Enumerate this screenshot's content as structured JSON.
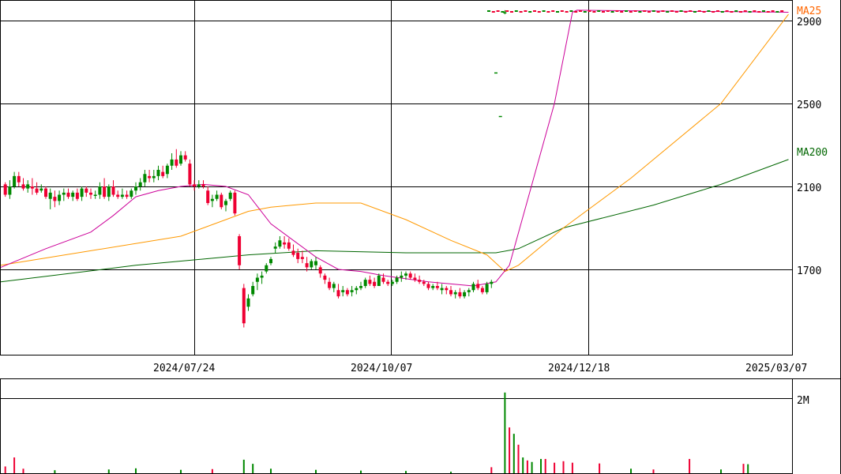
{
  "chart_data": [
    {
      "type": "candlestick",
      "y_ticks": [
        {
          "label": "2900",
          "value": 2900
        },
        {
          "label": "2500",
          "value": 2500
        },
        {
          "label": "2100",
          "value": 2100
        },
        {
          "label": "1700",
          "value": 1700
        }
      ],
      "x_ticks": [
        "2024/07/24",
        "2024/10/07",
        "2024/12/18",
        "2025/03/07"
      ],
      "series": [
        {
          "name": "MA25",
          "color": "#ff6600"
        },
        {
          "name": "MA200",
          "color": "#006600"
        }
      ],
      "colors": {
        "up": "#008800",
        "down": "#ee0033",
        "ma_short": "#cc0099",
        "ma_mid": "#ff9900",
        "ma_long": "#006600"
      },
      "candles": [
        [
          1,
          2110,
          2120,
          2050,
          2060
        ],
        [
          2,
          2060,
          2130,
          2040,
          2100
        ],
        [
          3,
          2100,
          2170,
          2090,
          2150
        ],
        [
          4,
          2150,
          2170,
          2100,
          2120
        ],
        [
          5,
          2110,
          2140,
          2080,
          2090
        ],
        [
          6,
          2090,
          2130,
          2070,
          2110
        ],
        [
          7,
          2100,
          2140,
          2060,
          2090
        ],
        [
          8,
          2090,
          2120,
          2060,
          2070
        ],
        [
          9,
          2080,
          2110,
          2070,
          2090
        ],
        [
          10,
          2090,
          2100,
          2040,
          2050
        ],
        [
          11,
          2040,
          2090,
          1990,
          2070
        ],
        [
          12,
          2050,
          2080,
          2000,
          2030
        ],
        [
          13,
          2030,
          2080,
          2010,
          2060
        ],
        [
          14,
          2060,
          2090,
          2030,
          2070
        ],
        [
          15,
          2070,
          2090,
          2040,
          2050
        ],
        [
          16,
          2050,
          2080,
          2030,
          2070
        ],
        [
          17,
          2070,
          2090,
          2030,
          2040
        ],
        [
          18,
          2050,
          2100,
          2030,
          2090
        ],
        [
          19,
          2090,
          2100,
          2050,
          2070
        ],
        [
          20,
          2070,
          2090,
          2040,
          2060
        ],
        [
          21,
          2060,
          2080,
          2040,
          2060
        ],
        [
          22,
          2060,
          2120,
          2040,
          2100
        ],
        [
          23,
          2100,
          2140,
          2040,
          2050
        ],
        [
          24,
          2050,
          2110,
          2030,
          2100
        ],
        [
          25,
          2100,
          2130,
          2050,
          2060
        ],
        [
          26,
          2060,
          2080,
          2040,
          2050
        ],
        [
          27,
          2050,
          2090,
          2040,
          2060
        ],
        [
          28,
          2060,
          2080,
          2040,
          2050
        ],
        [
          29,
          2050,
          2090,
          2040,
          2080
        ],
        [
          30,
          2080,
          2120,
          2060,
          2100
        ],
        [
          31,
          2100,
          2140,
          2080,
          2120
        ],
        [
          32,
          2120,
          2180,
          2100,
          2160
        ],
        [
          33,
          2150,
          2180,
          2120,
          2140
        ],
        [
          34,
          2140,
          2180,
          2120,
          2150
        ],
        [
          35,
          2150,
          2200,
          2130,
          2180
        ],
        [
          36,
          2170,
          2200,
          2140,
          2150
        ],
        [
          37,
          2160,
          2210,
          2140,
          2200
        ],
        [
          38,
          2200,
          2260,
          2180,
          2230
        ],
        [
          39,
          2230,
          2280,
          2190,
          2200
        ],
        [
          40,
          2210,
          2270,
          2200,
          2250
        ],
        [
          41,
          2250,
          2270,
          2220,
          2230
        ],
        [
          42,
          2210,
          2230,
          2100,
          2110
        ],
        [
          43,
          2110,
          2130,
          2080,
          2100
        ],
        [
          44,
          2100,
          2130,
          2090,
          2110
        ],
        [
          45,
          2110,
          2130,
          2090,
          2100
        ],
        [
          46,
          2080,
          2100,
          2010,
          2020
        ],
        [
          47,
          2030,
          2060,
          2000,
          2040
        ],
        [
          48,
          2040,
          2080,
          2030,
          2060
        ],
        [
          49,
          2060,
          2070,
          1990,
          2000
        ],
        [
          50,
          2010,
          2040,
          1980,
          2030
        ],
        [
          51,
          2040,
          2080,
          2030,
          2070
        ],
        [
          52,
          2070,
          2080,
          1960,
          1970
        ],
        [
          53,
          1860,
          1870,
          1700,
          1720
        ],
        [
          54,
          1610,
          1630,
          1420,
          1440
        ],
        [
          55,
          1520,
          1580,
          1500,
          1560
        ],
        [
          56,
          1580,
          1640,
          1570,
          1620
        ],
        [
          57,
          1640,
          1680,
          1600,
          1660
        ],
        [
          58,
          1660,
          1690,
          1630,
          1670
        ],
        [
          59,
          1690,
          1730,
          1680,
          1720
        ],
        [
          60,
          1730,
          1760,
          1720,
          1750
        ],
        [
          61,
          1800,
          1830,
          1780,
          1810
        ],
        [
          62,
          1810,
          1860,
          1800,
          1840
        ],
        [
          63,
          1830,
          1860,
          1800,
          1820
        ],
        [
          64,
          1830,
          1850,
          1790,
          1800
        ],
        [
          65,
          1790,
          1820,
          1760,
          1770
        ],
        [
          66,
          1780,
          1800,
          1730,
          1750
        ],
        [
          67,
          1760,
          1790,
          1730,
          1750
        ],
        [
          68,
          1730,
          1760,
          1690,
          1710
        ],
        [
          69,
          1710,
          1750,
          1700,
          1740
        ],
        [
          70,
          1720,
          1760,
          1700,
          1740
        ],
        [
          71,
          1710,
          1720,
          1660,
          1680
        ],
        [
          72,
          1670,
          1680,
          1630,
          1650
        ],
        [
          73,
          1640,
          1660,
          1600,
          1610
        ],
        [
          74,
          1610,
          1640,
          1590,
          1630
        ],
        [
          75,
          1600,
          1630,
          1560,
          1570
        ],
        [
          76,
          1590,
          1620,
          1570,
          1600
        ],
        [
          77,
          1600,
          1610,
          1570,
          1580
        ],
        [
          78,
          1590,
          1620,
          1570,
          1600
        ],
        [
          79,
          1600,
          1620,
          1580,
          1610
        ],
        [
          80,
          1610,
          1640,
          1600,
          1620
        ],
        [
          81,
          1620,
          1660,
          1610,
          1650
        ],
        [
          82,
          1650,
          1670,
          1620,
          1630
        ],
        [
          83,
          1640,
          1660,
          1610,
          1620
        ],
        [
          84,
          1620,
          1680,
          1620,
          1670
        ],
        [
          85,
          1660,
          1680,
          1630,
          1640
        ],
        [
          86,
          1640,
          1650,
          1620,
          1630
        ],
        [
          87,
          1630,
          1650,
          1620,
          1640
        ],
        [
          88,
          1640,
          1670,
          1630,
          1660
        ],
        [
          89,
          1660,
          1690,
          1640,
          1670
        ],
        [
          90,
          1670,
          1690,
          1650,
          1680
        ],
        [
          91,
          1680,
          1690,
          1650,
          1660
        ],
        [
          92,
          1660,
          1680,
          1640,
          1650
        ],
        [
          93,
          1650,
          1670,
          1630,
          1640
        ],
        [
          94,
          1640,
          1650,
          1620,
          1630
        ],
        [
          95,
          1630,
          1640,
          1600,
          1610
        ],
        [
          96,
          1610,
          1630,
          1600,
          1620
        ],
        [
          97,
          1620,
          1640,
          1600,
          1610
        ],
        [
          98,
          1600,
          1630,
          1580,
          1610
        ],
        [
          99,
          1610,
          1620,
          1580,
          1600
        ],
        [
          100,
          1600,
          1620,
          1570,
          1580
        ],
        [
          101,
          1580,
          1600,
          1560,
          1590
        ],
        [
          102,
          1590,
          1610,
          1560,
          1570
        ],
        [
          103,
          1570,
          1600,
          1560,
          1590
        ],
        [
          104,
          1590,
          1610,
          1570,
          1600
        ],
        [
          105,
          1600,
          1640,
          1590,
          1630
        ],
        [
          106,
          1630,
          1650,
          1600,
          1610
        ],
        [
          107,
          1610,
          1620,
          1580,
          1590
        ],
        [
          108,
          1590,
          1640,
          1580,
          1630
        ],
        [
          109,
          1630,
          1650,
          1610,
          1640
        ],
        [
          110,
          2650,
          2650,
          2650,
          2650
        ],
        [
          111,
          2440,
          2440,
          2440,
          2440
        ],
        [
          112,
          2940,
          2950,
          2930,
          2940
        ]
      ],
      "ma25": [
        [
          0,
          1710
        ],
        [
          10,
          1800
        ],
        [
          20,
          1880
        ],
        [
          25,
          1960
        ],
        [
          30,
          2050
        ],
        [
          35,
          2080
        ],
        [
          40,
          2100
        ],
        [
          45,
          2110
        ],
        [
          50,
          2100
        ],
        [
          55,
          2060
        ],
        [
          60,
          1920
        ],
        [
          65,
          1840
        ],
        [
          70,
          1760
        ],
        [
          75,
          1700
        ],
        [
          80,
          1690
        ],
        [
          85,
          1670
        ],
        [
          95,
          1640
        ],
        [
          105,
          1620
        ],
        [
          110,
          1640
        ],
        [
          113,
          1720
        ],
        [
          123,
          2500
        ],
        [
          127,
          2940
        ],
        [
          128,
          2950
        ],
        [
          175,
          2940
        ]
      ],
      "ma75": [
        [
          0,
          1720
        ],
        [
          20,
          1790
        ],
        [
          40,
          1860
        ],
        [
          55,
          1980
        ],
        [
          60,
          2000
        ],
        [
          70,
          2020
        ],
        [
          80,
          2020
        ],
        [
          90,
          1940
        ],
        [
          100,
          1840
        ],
        [
          108,
          1770
        ],
        [
          112,
          1690
        ],
        [
          115,
          1720
        ],
        [
          125,
          1900
        ],
        [
          140,
          2140
        ],
        [
          160,
          2500
        ],
        [
          175,
          2930
        ]
      ],
      "ma200": [
        [
          0,
          1640
        ],
        [
          30,
          1720
        ],
        [
          55,
          1770
        ],
        [
          70,
          1790
        ],
        [
          90,
          1780
        ],
        [
          110,
          1780
        ],
        [
          115,
          1800
        ],
        [
          125,
          1900
        ],
        [
          145,
          2010
        ],
        [
          160,
          2110
        ],
        [
          175,
          2230
        ]
      ],
      "volume": {
        "ticks": [
          {
            "label": "2M",
            "value": 2000000
          }
        ],
        "bars": [
          [
            1,
            180000
          ],
          [
            3,
            420000
          ],
          [
            5,
            120000
          ],
          [
            12,
            80000
          ],
          [
            24,
            100000
          ],
          [
            30,
            130000
          ],
          [
            40,
            90000
          ],
          [
            47,
            110000
          ],
          [
            54,
            360000
          ],
          [
            56,
            250000
          ],
          [
            60,
            120000
          ],
          [
            70,
            90000
          ],
          [
            80,
            70000
          ],
          [
            90,
            60000
          ],
          [
            100,
            40000
          ],
          [
            109,
            160000
          ],
          [
            112,
            2150000
          ],
          [
            113,
            1220000
          ],
          [
            114,
            1050000
          ],
          [
            115,
            760000
          ],
          [
            116,
            420000
          ],
          [
            117,
            340000
          ],
          [
            118,
            300000
          ],
          [
            120,
            380000
          ],
          [
            121,
            380000
          ],
          [
            123,
            280000
          ],
          [
            125,
            320000
          ],
          [
            127,
            280000
          ],
          [
            133,
            260000
          ],
          [
            140,
            120000
          ],
          [
            145,
            100000
          ],
          [
            153,
            380000
          ],
          [
            160,
            100000
          ],
          [
            165,
            250000
          ],
          [
            166,
            240000
          ]
        ]
      }
    }
  ]
}
